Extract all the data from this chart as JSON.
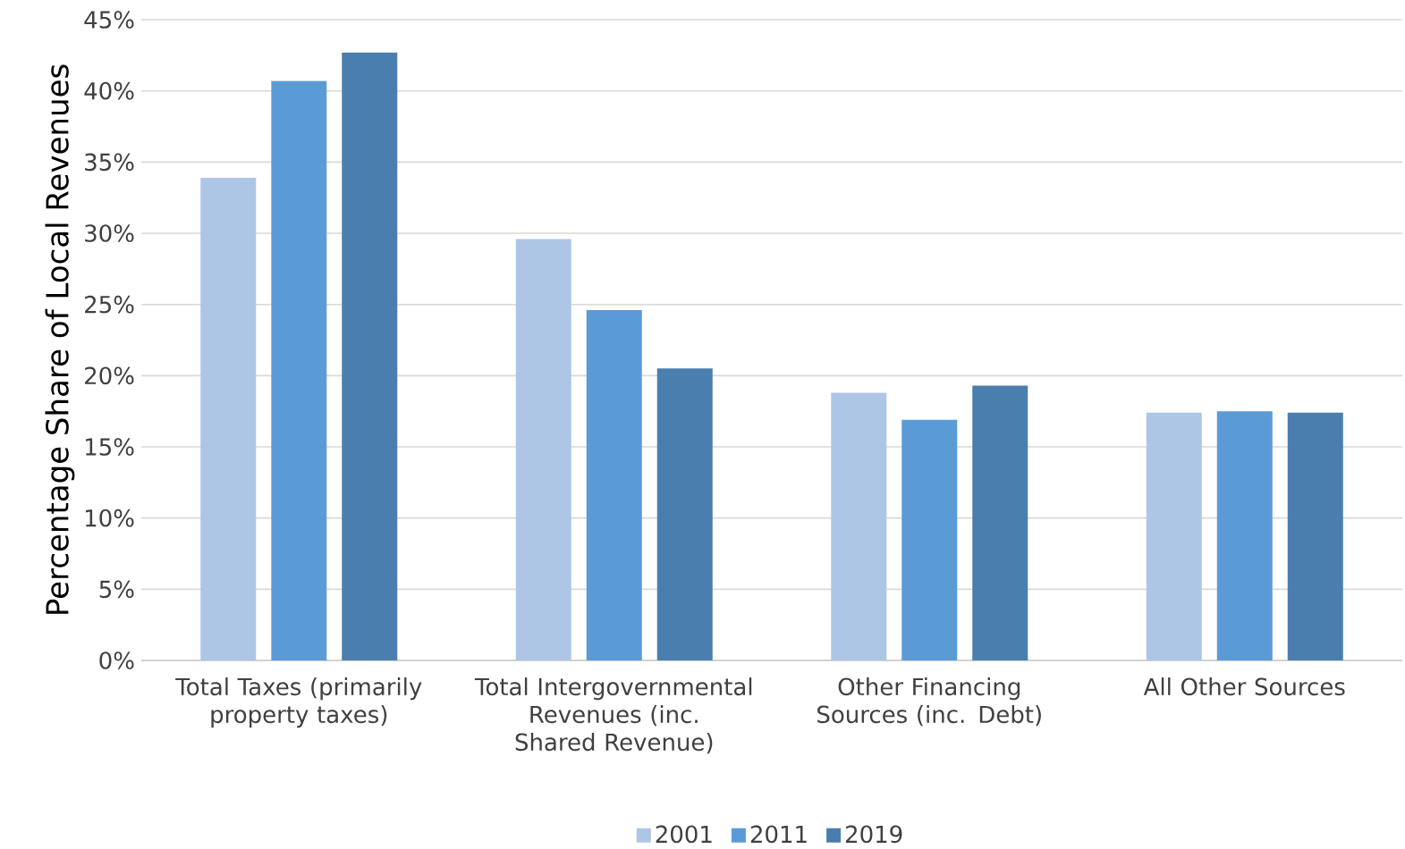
{
  "chart_data": {
    "type": "bar",
    "ylabel": "Percentage Share of Local Revenues",
    "categories": [
      "Total Taxes (primarily property taxes)",
      "Total Intergovernmental Revenues (inc. Shared Revenue)",
      "Other Financing Sources (inc. Debt)",
      "All Other Sources"
    ],
    "series": [
      {
        "name": "2001",
        "color": "#adc6e5",
        "values": [
          33.9,
          29.6,
          18.8,
          17.4
        ]
      },
      {
        "name": "2011",
        "color": "#5b9bd5",
        "values": [
          40.7,
          24.6,
          16.9,
          17.5
        ]
      },
      {
        "name": "2019",
        "color": "#4a7eae",
        "values": [
          42.7,
          20.5,
          19.3,
          17.4
        ]
      }
    ],
    "ylim": [
      0,
      45
    ],
    "yticks": [
      {
        "value": 0,
        "label": "0%"
      },
      {
        "value": 5,
        "label": "5%"
      },
      {
        "value": 10,
        "label": "10%"
      },
      {
        "value": 15,
        "label": "15%"
      },
      {
        "value": 20,
        "label": "20%"
      },
      {
        "value": 25,
        "label": "25%"
      },
      {
        "value": 30,
        "label": "30%"
      },
      {
        "value": 35,
        "label": "35%"
      },
      {
        "value": 40,
        "label": "40%"
      },
      {
        "value": 45,
        "label": "45%"
      }
    ],
    "grid": "y",
    "legend": "bottom"
  }
}
